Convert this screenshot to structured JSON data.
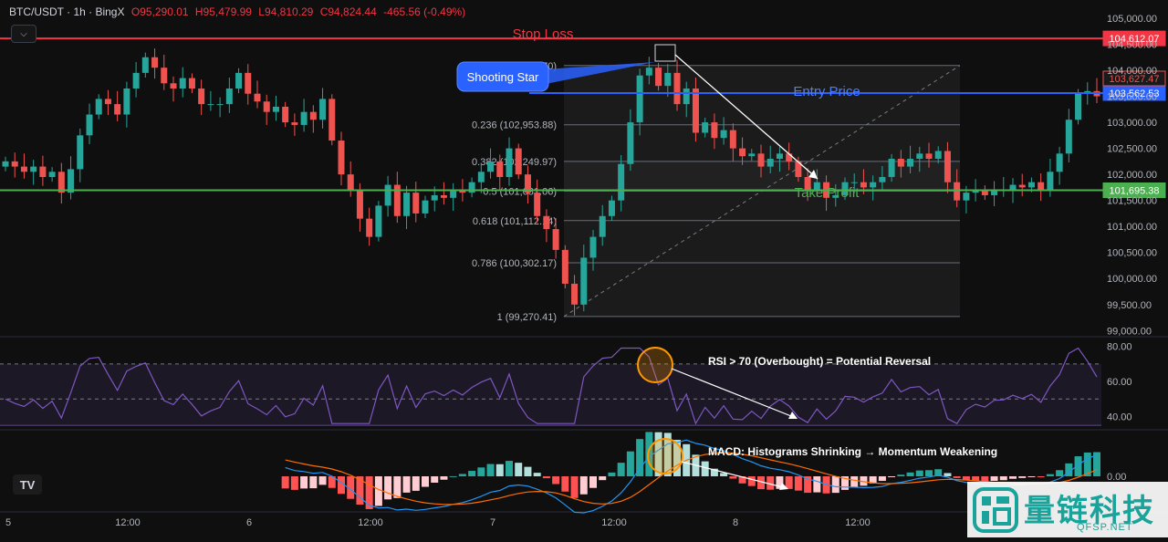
{
  "header": {
    "symbol": "BTC/USDT · 1h · BingX",
    "open": "O95,290.01",
    "high": "H95,479.99",
    "low": "L94,810.29",
    "close": "C94,824.44",
    "change": "-465.56 (-0.49%)"
  },
  "colors": {
    "up": "#26a69a",
    "down": "#ef5350",
    "stop": "#f23645",
    "entry": "#2962ff",
    "take": "#4caf50",
    "rsi": "#7e57c2",
    "macd": "#2196f3",
    "signal": "#ff6d00"
  },
  "chart_data": {
    "type": "candlestick",
    "price_axis": {
      "ylim": [
        98900,
        105350
      ],
      "ticks": [
        "99,000.00",
        "99,500.00",
        "100,000.00",
        "100,500.00",
        "101,000.00",
        "101,500.00",
        "102,000.00",
        "102,500.00",
        "103,000.00",
        "103,500.00",
        "104,000.00",
        "104,500.00",
        "105,000.00"
      ]
    },
    "time_axis": [
      "5",
      "12:00",
      "6",
      "12:00",
      "7",
      "12:00",
      "8",
      "12:00"
    ],
    "levels": {
      "stop_loss": {
        "label": "Stop Loss",
        "price": 104612.07,
        "badge": "104,612.07"
      },
      "entry": {
        "label": "Entry Price",
        "price": 103562.53,
        "badge": "103,562.53"
      },
      "take_profit": {
        "label": "Take Profit",
        "price": 101695.38,
        "badge": "101,695.38"
      },
      "last_price_badge": "103,627.47"
    },
    "fib": [
      {
        "label": "0 (104,091.70)",
        "price": 104091.7
      },
      {
        "label": "0.236 (102,953.88)",
        "price": 102953.88
      },
      {
        "label": "0.382 (102,249.97)",
        "price": 102249.97
      },
      {
        "label": "0.5 (101,681.06)",
        "price": 101681.06
      },
      {
        "label": "0.618 (101,112.14)",
        "price": 101112.14
      },
      {
        "label": "0.786 (100,302.17)",
        "price": 100302.17
      },
      {
        "label": "1 (99,270.41)",
        "price": 99270.41
      }
    ],
    "annotations": {
      "shooting_star": "Shooting Star",
      "rsi_note": "RSI > 70 (Overbought) = Potential Reversal",
      "macd_note": "MACD: Histograms Shrinking → Momentum Weakening"
    },
    "close_series": [
      102250,
      102150,
      102050,
      102150,
      101950,
      102050,
      101650,
      102100,
      102750,
      103150,
      103450,
      103350,
      103150,
      103650,
      103950,
      104250,
      104050,
      103750,
      103650,
      103850,
      103650,
      103350,
      103350,
      103350,
      103650,
      103950,
      103550,
      103400,
      103200,
      103300,
      103000,
      102950,
      103200,
      103050,
      103450,
      102650,
      102000,
      101700,
      101150,
      100800,
      101400,
      101800,
      101200,
      101650,
      101250,
      101500,
      101600,
      101550,
      101700,
      101650,
      101850,
      102050,
      102250,
      101950,
      102500,
      102000,
      101650,
      101200,
      100950,
      100550,
      99900,
      99500,
      100400,
      100800,
      101200,
      101500,
      102200,
      103000,
      103900,
      104050,
      103700,
      103950,
      103350,
      103650,
      102800,
      103000,
      102700,
      102850,
      102500,
      102350,
      102400,
      102150,
      102300,
      102400,
      102250,
      101950,
      101700,
      101850,
      101550,
      101600,
      101850,
      101850,
      101750,
      101850,
      101950,
      102300,
      102150,
      102300,
      102400,
      102300,
      102450,
      101850,
      101500,
      101650,
      101700,
      101600,
      101700,
      101700,
      101800,
      101750,
      101850,
      101700,
      102050,
      102400,
      103050,
      103550,
      103600,
      103500
    ],
    "rsi": {
      "ylim": [
        33,
        85
      ],
      "ticks": [
        "80.00",
        "60.00",
        "40.00"
      ],
      "overbought": 70,
      "oversold": 30
    },
    "macd": {
      "zero_tick": "0.00"
    }
  },
  "watermark": {
    "cn": "量链科技",
    "en": "QFSP.NET"
  }
}
